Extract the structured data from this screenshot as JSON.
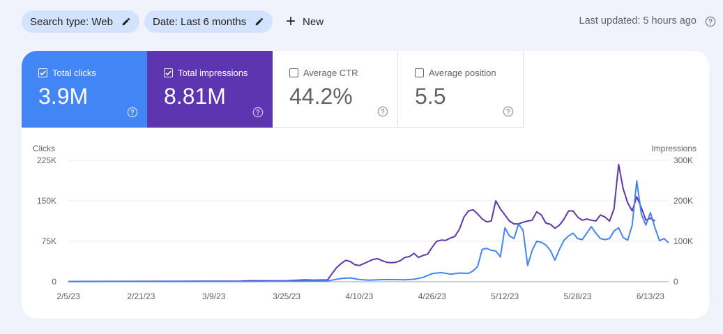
{
  "filters": {
    "search_type": "Search type: Web",
    "date": "Date: Last 6 months",
    "new_label": "New"
  },
  "last_updated": "Last updated: 5 hours ago",
  "metrics": {
    "clicks": {
      "label": "Total clicks",
      "value": "3.9M",
      "checked": true,
      "color": "#4285f4"
    },
    "impressions": {
      "label": "Total impressions",
      "value": "8.81M",
      "checked": true,
      "color": "#5e35b1"
    },
    "ctr": {
      "label": "Average CTR",
      "value": "44.2%",
      "checked": false
    },
    "position": {
      "label": "Average position",
      "value": "5.5",
      "checked": false
    }
  },
  "chart_data": {
    "type": "line",
    "left_axis_label": "Clicks",
    "right_axis_label": "Impressions",
    "left_ticks": [
      "0",
      "75K",
      "150K",
      "225K"
    ],
    "right_ticks": [
      "0",
      "100K",
      "200K",
      "300K"
    ],
    "ylim_left": [
      0,
      225000
    ],
    "ylim_right": [
      0,
      300000
    ],
    "x_tick_labels": [
      "2/5/23",
      "2/21/23",
      "3/9/23",
      "3/25/23",
      "4/10/23",
      "4/26/23",
      "5/12/23",
      "5/28/23",
      "6/13/23"
    ],
    "x_tick_days": [
      0,
      16,
      32,
      48,
      64,
      80,
      96,
      112,
      128
    ],
    "grid": true,
    "series": [
      {
        "name": "Impressions",
        "axis": "right",
        "color": "#5e35b1",
        "points": [
          [
            0,
            500
          ],
          [
            10,
            800
          ],
          [
            20,
            1000
          ],
          [
            30,
            1200
          ],
          [
            38,
            1500
          ],
          [
            40,
            2500
          ],
          [
            44,
            2000
          ],
          [
            48,
            2500
          ],
          [
            52,
            4500
          ],
          [
            54,
            4000
          ],
          [
            57,
            4500
          ],
          [
            58,
            20000
          ],
          [
            59,
            35000
          ],
          [
            60,
            45000
          ],
          [
            61,
            53000
          ],
          [
            62,
            50000
          ],
          [
            63,
            42000
          ],
          [
            64,
            40000
          ],
          [
            65,
            45000
          ],
          [
            66,
            50000
          ],
          [
            67,
            55000
          ],
          [
            68,
            57000
          ],
          [
            69,
            52000
          ],
          [
            70,
            48000
          ],
          [
            71,
            47000
          ],
          [
            72,
            48000
          ],
          [
            73,
            52000
          ],
          [
            74,
            60000
          ],
          [
            75,
            62000
          ],
          [
            76,
            70000
          ],
          [
            77,
            60000
          ],
          [
            78,
            65000
          ],
          [
            79,
            68000
          ],
          [
            80,
            85000
          ],
          [
            81,
            100000
          ],
          [
            82,
            103000
          ],
          [
            83,
            102000
          ],
          [
            84,
            108000
          ],
          [
            85,
            112000
          ],
          [
            86,
            130000
          ],
          [
            87,
            160000
          ],
          [
            88,
            175000
          ],
          [
            89,
            178000
          ],
          [
            90,
            168000
          ],
          [
            91,
            155000
          ],
          [
            92,
            148000
          ],
          [
            93,
            150000
          ],
          [
            94,
            200000
          ],
          [
            95,
            180000
          ],
          [
            96,
            165000
          ],
          [
            97,
            150000
          ],
          [
            98,
            143000
          ],
          [
            99,
            143000
          ],
          [
            100,
            147000
          ],
          [
            101,
            150000
          ],
          [
            102,
            152000
          ],
          [
            103,
            173000
          ],
          [
            104,
            165000
          ],
          [
            105,
            145000
          ],
          [
            106,
            142000
          ],
          [
            107,
            132000
          ],
          [
            108,
            140000
          ],
          [
            109,
            155000
          ],
          [
            110,
            175000
          ],
          [
            111,
            175000
          ],
          [
            112,
            160000
          ],
          [
            113,
            152000
          ],
          [
            114,
            155000
          ],
          [
            115,
            152000
          ],
          [
            116,
            150000
          ],
          [
            117,
            165000
          ],
          [
            118,
            160000
          ],
          [
            119,
            150000
          ],
          [
            120,
            180000
          ],
          [
            121,
            290000
          ],
          [
            122,
            230000
          ],
          [
            123,
            195000
          ],
          [
            124,
            175000
          ],
          [
            125,
            210000
          ],
          [
            126,
            183000
          ],
          [
            127,
            152000
          ],
          [
            128,
            157000
          ],
          [
            129,
            150000
          ]
        ]
      },
      {
        "name": "Clicks",
        "axis": "left",
        "color": "#4285f4",
        "points": [
          [
            0,
            200
          ],
          [
            20,
            300
          ],
          [
            40,
            500
          ],
          [
            52,
            1200
          ],
          [
            57,
            1500
          ],
          [
            58,
            3000
          ],
          [
            60,
            6000
          ],
          [
            62,
            7000
          ],
          [
            64,
            4000
          ],
          [
            66,
            3000
          ],
          [
            70,
            4000
          ],
          [
            74,
            3500
          ],
          [
            76,
            4500
          ],
          [
            78,
            8000
          ],
          [
            80,
            15000
          ],
          [
            82,
            17000
          ],
          [
            84,
            14000
          ],
          [
            86,
            16000
          ],
          [
            88,
            15500
          ],
          [
            89,
            20000
          ],
          [
            90,
            28000
          ],
          [
            91,
            60000
          ],
          [
            92,
            62000
          ],
          [
            93,
            58000
          ],
          [
            94,
            57000
          ],
          [
            95,
            46000
          ],
          [
            96,
            100000
          ],
          [
            97,
            85000
          ],
          [
            98,
            80000
          ],
          [
            99,
            107000
          ],
          [
            100,
            95000
          ],
          [
            101,
            30000
          ],
          [
            102,
            58000
          ],
          [
            103,
            75000
          ],
          [
            104,
            73000
          ],
          [
            105,
            68000
          ],
          [
            106,
            58000
          ],
          [
            107,
            40000
          ],
          [
            108,
            60000
          ],
          [
            109,
            77000
          ],
          [
            110,
            85000
          ],
          [
            111,
            90000
          ],
          [
            112,
            80000
          ],
          [
            113,
            78000
          ],
          [
            114,
            90000
          ],
          [
            115,
            102000
          ],
          [
            116,
            90000
          ],
          [
            117,
            80000
          ],
          [
            118,
            78000
          ],
          [
            119,
            80000
          ],
          [
            120,
            94000
          ],
          [
            121,
            100000
          ],
          [
            122,
            82000
          ],
          [
            123,
            77000
          ],
          [
            124,
            105000
          ],
          [
            125,
            187000
          ],
          [
            126,
            125000
          ],
          [
            127,
            105000
          ],
          [
            128,
            128000
          ],
          [
            129,
            100000
          ],
          [
            130,
            76000
          ],
          [
            131,
            80000
          ],
          [
            132,
            72000
          ]
        ]
      }
    ]
  }
}
